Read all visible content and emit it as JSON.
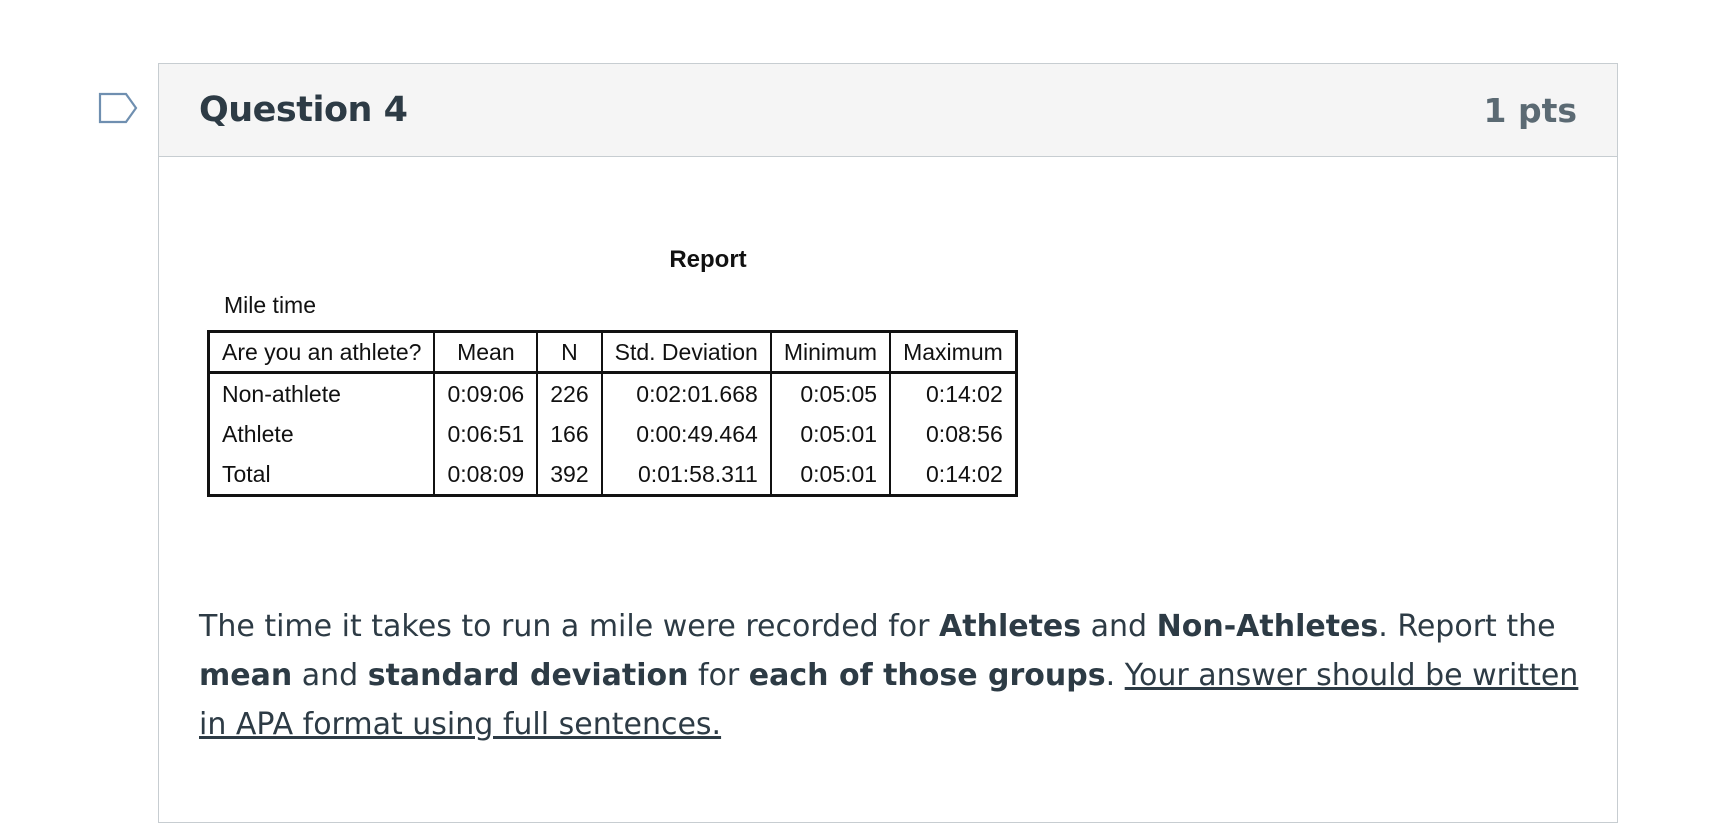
{
  "question": {
    "title": "Question 4",
    "points": "1 pts"
  },
  "report": {
    "title": "Report",
    "subtitle": "Mile time",
    "headers": [
      "Are you an athlete?",
      "Mean",
      "N",
      "Std. Deviation",
      "Minimum",
      "Maximum"
    ],
    "rows": [
      [
        "Non-athlete",
        "0:09:06",
        "226",
        "0:02:01.668",
        "0:05:05",
        "0:14:02"
      ],
      [
        "Athlete",
        "0:06:51",
        "166",
        "0:00:49.464",
        "0:05:01",
        "0:08:56"
      ],
      [
        "Total",
        "0:08:09",
        "392",
        "0:01:58.311",
        "0:05:01",
        "0:14:02"
      ]
    ]
  },
  "prompt": {
    "p1": "The time it takes to run a mile were recorded for ",
    "b1": "Athletes",
    "p2": " and ",
    "b2": "Non-Athletes",
    "p3": ". Report the ",
    "b3": "mean",
    "p4": " and ",
    "b4": "standard deviation",
    "p5": " for ",
    "b5": "each of those groups",
    "p6": ". ",
    "u1": "Your answer should be written in APA format using full sentences."
  },
  "colors": {
    "header_bg": "#f5f5f5",
    "border": "#c7cdd1",
    "text": "#2d3b45",
    "points": "#5b6a73",
    "flag": "#6f8fb0"
  },
  "icons": {
    "flag": "bookmark-flag-icon"
  }
}
